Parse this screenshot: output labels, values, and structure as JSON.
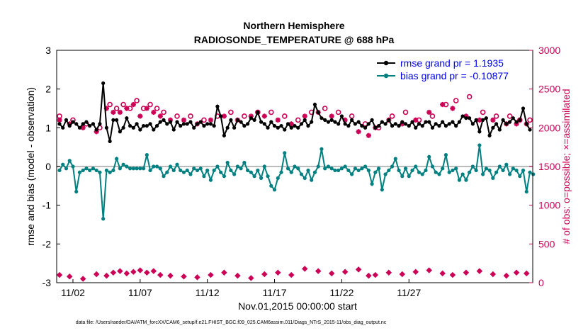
{
  "chart_data": {
    "type": "line",
    "title": "Northern Hemisphere",
    "subtitle": "RADIOSONDE_TEMPERATURE @ 688 hPa",
    "xlabel": "Nov.01,2015 00:00:00 start",
    "ylabel": "rmse and bias (model - observation)",
    "ylabel_right": "# of obs: o=possible; ×=assimilated",
    "ylim": [
      -3,
      3
    ],
    "ylim_right": [
      0,
      3000
    ],
    "yticks": [
      "3",
      "2",
      "1",
      "0",
      "-1",
      "-2",
      "-3"
    ],
    "yticks_right": [
      "3000",
      "2500",
      "2000",
      "1500",
      "1000",
      "500",
      "0"
    ],
    "xticks": [
      "11/02",
      "11/07",
      "11/12",
      "11/17",
      "11/22",
      "11/27"
    ],
    "footnote": "data file: /Users/raeder/DAI/ATM_forcXX/CAM6_setup/f.e21.FHIST_BGC.f09_025.CAM6assim.011/Diags_NTrS_2015-11/obs_diag_output.nc",
    "series": [
      {
        "name": "rmse grand pr = 1.1935",
        "color": "#000000",
        "marker": "filled-circle",
        "values": [
          1.1,
          1.0,
          1.2,
          1.05,
          1.15,
          1.1,
          1.0,
          1.1,
          1.15,
          1.05,
          1.1,
          0.95,
          1.1,
          2.15,
          1.0,
          0.65,
          1.2,
          1.2,
          0.9,
          1.0,
          1.25,
          1.05,
          1.0,
          1.1,
          0.95,
          1.05,
          1.05,
          1.1,
          0.95,
          1.05,
          1.15,
          1.2,
          1.1,
          1.15,
          0.95,
          1.15,
          1.05,
          1.1,
          1.1,
          1.15,
          1.0,
          1.1,
          1.15,
          1.05,
          1.1,
          1.1,
          1.05,
          1.55,
          1.3,
          0.8,
          1.0,
          1.2,
          1.0,
          1.2,
          1.15,
          1.05,
          1.1,
          1.25,
          1.2,
          1.4,
          1.15,
          1.1,
          1.0,
          1.15,
          1.05,
          1.0,
          1.05,
          0.95,
          1.1,
          1.0,
          1.05,
          1.0,
          1.1,
          1.2,
          1.05,
          1.15,
          1.6,
          1.4,
          1.25,
          1.2,
          1.15,
          1.2,
          1.15,
          1.1,
          1.3,
          1.1,
          1.05,
          1.2,
          1.1,
          1.15,
          1.05,
          1.0,
          1.1,
          1.2,
          1.0,
          1.05,
          1.15,
          1.1,
          1.2,
          1.05,
          1.1,
          1.05,
          1.15,
          1.1,
          1.05,
          1.15,
          1.0,
          1.1,
          1.05,
          1.15,
          1.15,
          1.0,
          1.1,
          1.05,
          1.15,
          1.05,
          1.1,
          1.15,
          1.05,
          1.15,
          1.3,
          1.25,
          1.25,
          1.1,
          1.2,
          0.9,
          1.2,
          1.25,
          0.8,
          1.0,
          1.1,
          0.95,
          1.2,
          1.1,
          1.15,
          1.25,
          1.15,
          1.2,
          1.5,
          1.1,
          0.95
        ]
      },
      {
        "name": "bias grand pr = -0.10877",
        "color": "#008080",
        "marker": "filled-circle",
        "values": [
          -0.1,
          0.05,
          -0.05,
          0.15,
          0.0,
          -0.65,
          -0.15,
          -0.1,
          -0.05,
          -0.1,
          -0.05,
          -0.1,
          -0.15,
          -1.35,
          -0.1,
          -0.15,
          -0.1,
          0.2,
          -0.05,
          0.05,
          0.0,
          -0.05,
          -0.05,
          -0.05,
          -0.05,
          -0.05,
          0.3,
          -0.1,
          0.0,
          0.0,
          -0.05,
          -0.25,
          -0.15,
          0.0,
          -0.1,
          0.05,
          -0.1,
          -0.15,
          -0.1,
          -0.2,
          -0.05,
          -0.1,
          -0.05,
          -0.25,
          -0.1,
          -0.35,
          -0.1,
          0.0,
          -0.15,
          -0.25,
          0.1,
          -0.1,
          -0.2,
          0.0,
          -0.05,
          0.1,
          -0.1,
          -0.15,
          -0.25,
          -0.1,
          -0.3,
          0.0,
          -0.25,
          -0.5,
          -0.6,
          -0.3,
          -0.15,
          0.35,
          -0.05,
          -0.15,
          0.0,
          -0.05,
          -0.2,
          -0.3,
          -0.1,
          -0.35,
          -0.15,
          0.0,
          0.45,
          -0.05,
          0.0,
          -0.05,
          -0.1,
          -0.1,
          -0.05,
          0.0,
          -0.1,
          -0.2,
          -0.05,
          -0.1,
          -0.05,
          0.0,
          -0.1,
          -0.45,
          -0.15,
          -0.05,
          -0.6,
          -0.2,
          -0.1,
          0.0,
          0.2,
          -0.1,
          -0.25,
          -0.05,
          -0.25,
          -0.1,
          0.0,
          -0.15,
          -0.2,
          -0.1,
          0.25,
          0.0,
          -0.15,
          -0.2,
          -0.05,
          0.3,
          -0.15,
          -0.1,
          -0.05,
          -0.35,
          -0.2,
          -0.35,
          -0.15,
          0.0,
          -0.1,
          0.55,
          -0.2,
          -0.05,
          -0.1,
          -0.3,
          -0.15,
          0.0,
          -0.1,
          0.05,
          -0.2,
          -0.05,
          -0.1,
          -0.25,
          -0.1,
          -0.65,
          -0.15,
          -0.2
        ]
      },
      {
        "name": "possible obs",
        "axis": "right",
        "color": "#cc0055",
        "marker": "open-circle",
        "x": [
          0,
          4,
          8,
          12,
          15,
          17,
          19,
          21,
          23,
          25,
          27,
          29,
          31,
          35,
          39,
          43,
          47,
          51,
          55,
          59,
          63,
          67,
          71,
          75,
          79,
          83,
          87,
          91,
          95,
          99,
          103,
          107,
          111,
          115,
          118,
          122,
          126,
          130,
          134,
          137,
          140
        ],
        "values": [
          2150,
          2100,
          2050,
          2000,
          2300,
          2250,
          2300,
          2250,
          2350,
          2250,
          2300,
          2250,
          2200,
          2150,
          2150,
          2100,
          2150,
          2200,
          2150,
          2200,
          2200,
          2150,
          2100,
          2200,
          2250,
          2200,
          2150,
          2050,
          2000,
          2150,
          2200,
          2100,
          2150,
          2300,
          2350,
          2400,
          2200,
          2150,
          2150,
          2100,
          2100
        ]
      },
      {
        "name": "assimilated obs",
        "axis": "right",
        "color": "#cc0055",
        "marker": "star",
        "x": [
          0,
          3,
          7,
          11,
          14,
          16,
          18,
          20,
          22,
          24,
          26,
          28,
          30,
          33,
          37,
          41,
          45,
          49,
          53,
          57,
          61,
          65,
          69,
          73,
          77,
          81,
          85,
          89,
          92,
          94,
          98,
          102,
          106,
          110,
          114,
          117,
          121,
          125,
          129,
          133,
          136,
          139
        ],
        "values": [
          2100,
          2050,
          2000,
          1950,
          2250,
          2200,
          2200,
          2250,
          2300,
          2150,
          2250,
          2200,
          2150,
          2100,
          2100,
          2050,
          2100,
          2150,
          2100,
          2150,
          2150,
          2100,
          2050,
          2150,
          2200,
          2150,
          2100,
          1950,
          1900,
          2000,
          2100,
          2050,
          2100,
          2200,
          2300,
          2250,
          2150,
          2100,
          2100,
          2050,
          2050,
          2050
        ],
        "baseline_values": [
          100,
          80,
          50,
          110,
          90,
          130,
          150,
          120,
          140,
          160,
          130,
          150,
          100,
          90,
          80,
          70,
          100,
          130,
          90,
          60,
          110,
          130,
          100,
          180,
          150,
          120,
          140,
          170,
          90,
          100,
          130,
          110,
          140,
          160,
          120,
          100,
          130,
          150,
          110,
          90,
          130,
          120
        ]
      }
    ],
    "legend": [
      "rmse grand pr = 1.1935",
      "bias grand pr = -0.10877"
    ]
  }
}
